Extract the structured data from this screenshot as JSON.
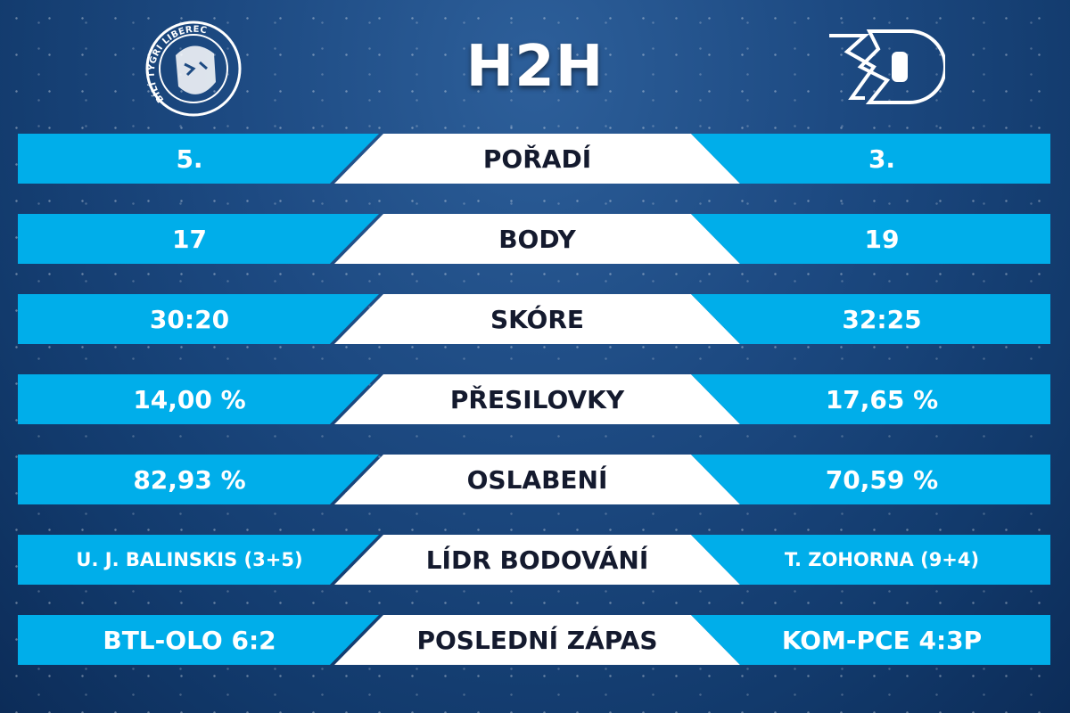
{
  "title": "H2H",
  "home_logo_text": "BÍLÍ TYGŘI LIBEREC",
  "colors": {
    "bar": "#00aeea",
    "center": "#ffffff",
    "text_dark": "#141a2e",
    "background": "#1d4a82"
  },
  "rows": [
    {
      "label": "POŘADÍ",
      "home": "5.",
      "away": "3."
    },
    {
      "label": "BODY",
      "home": "17",
      "away": "19"
    },
    {
      "label": "SKÓRE",
      "home": "30:20",
      "away": "32:25"
    },
    {
      "label": "PŘESILOVKY",
      "home": "14,00 %",
      "away": "17,65 %"
    },
    {
      "label": "OSLABENÍ",
      "home": "82,93 %",
      "away": "70,59 %"
    },
    {
      "label": "LÍDR BODOVÁNÍ",
      "home": "U. J. BALINSKIS (3+5)",
      "away": "T. ZOHORNA (9+4)"
    },
    {
      "label": "POSLEDNÍ ZÁPAS",
      "home": "BTL-OLO 6:2",
      "away": "KOM-PCE 4:3P"
    }
  ]
}
